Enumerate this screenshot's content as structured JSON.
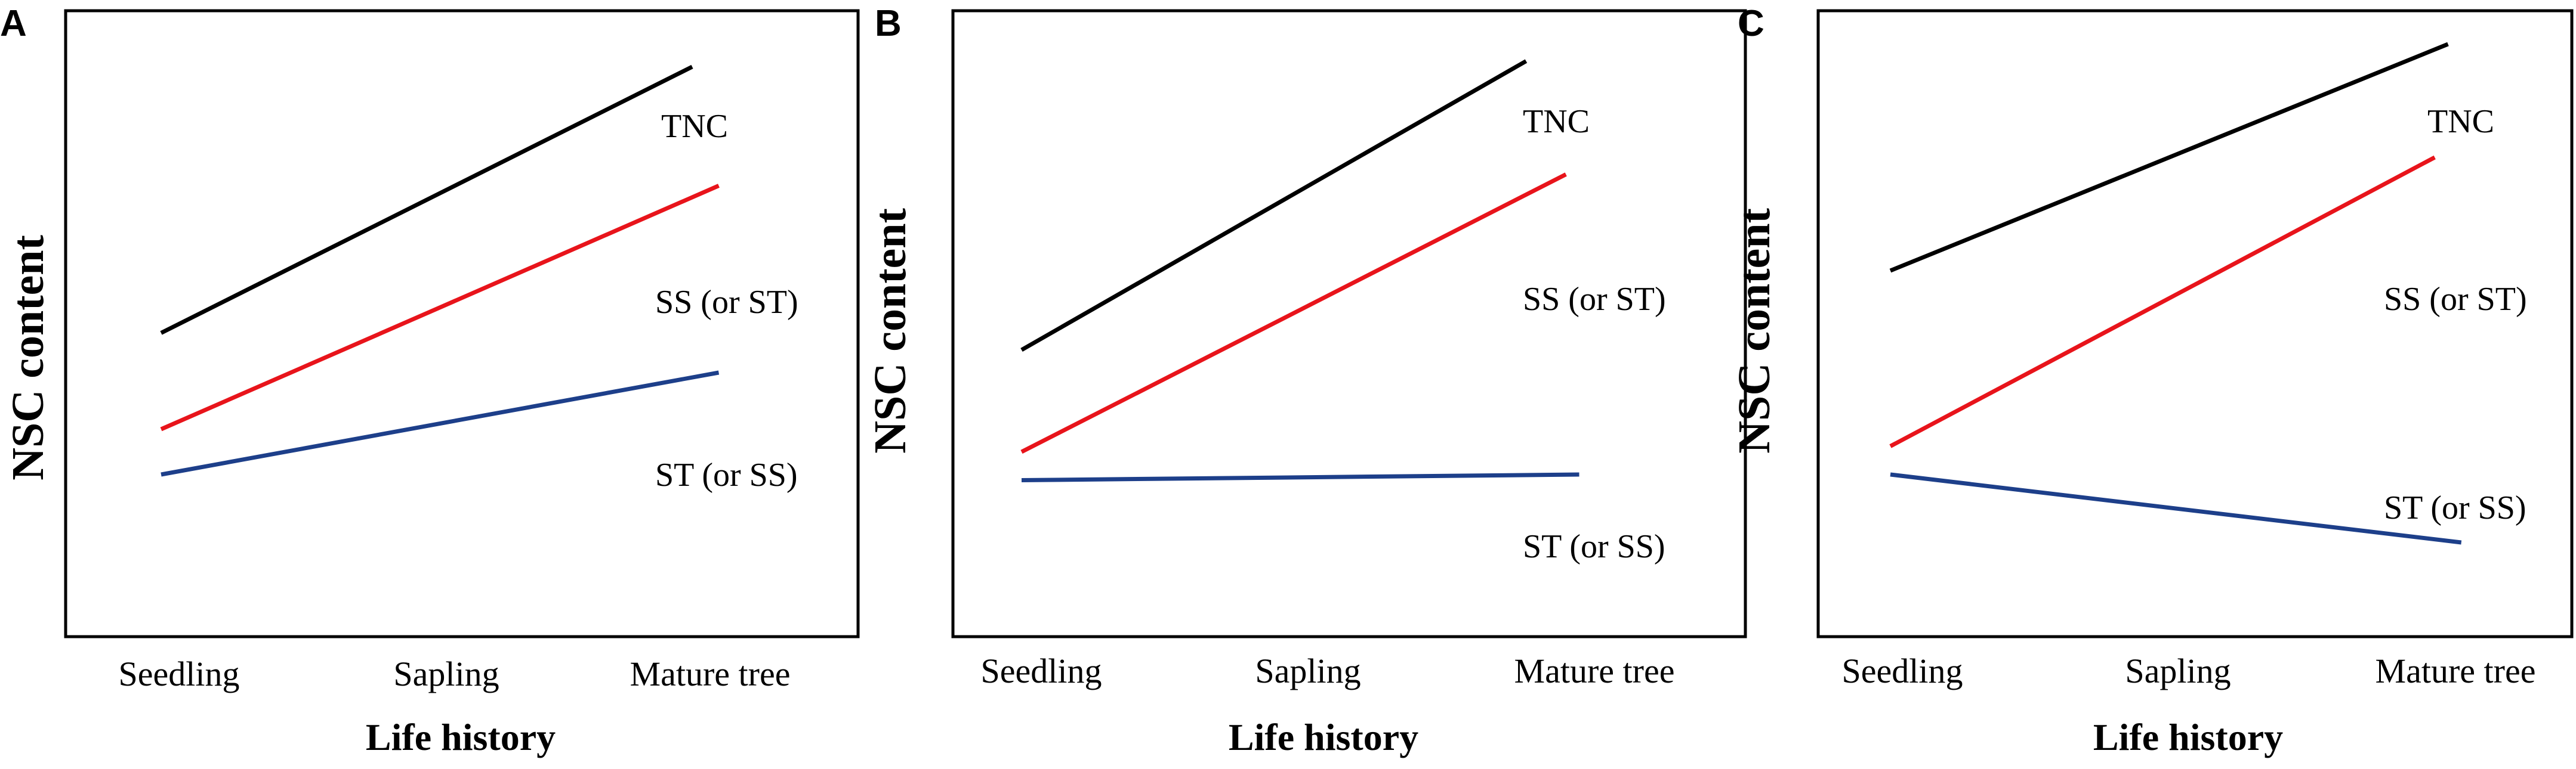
{
  "figure": {
    "colors": {
      "TNC": "#000000",
      "SS": "#e8141b",
      "ST": "#1d3f8a",
      "frame": "#000000",
      "background": "#ffffff"
    }
  },
  "chart_data": [
    {
      "panel": "A",
      "type": "line",
      "title": "",
      "xlabel": "Life history",
      "ylabel": "NSC content",
      "categories": [
        "Seedling",
        "Sapling",
        "Mature tree"
      ],
      "ylim": [
        0,
        100
      ],
      "grid": false,
      "series": [
        {
          "key": "TNC",
          "name": "TNC",
          "x": [
            0.0,
            2.0
          ],
          "values": [
            47,
            94
          ]
        },
        {
          "key": "SS",
          "name": "SS (or ST)",
          "x": [
            0.0,
            2.1
          ],
          "values": [
            30,
            73
          ]
        },
        {
          "key": "ST",
          "name": "ST (or SS)",
          "x": [
            0.0,
            2.1
          ],
          "values": [
            22,
            40
          ]
        }
      ]
    },
    {
      "panel": "B",
      "type": "line",
      "title": "",
      "xlabel": "Life history",
      "ylabel": "NSC content",
      "categories": [
        "Seedling",
        "Sapling",
        "Mature tree"
      ],
      "ylim": [
        0,
        100
      ],
      "grid": false,
      "series": [
        {
          "key": "TNC",
          "name": "TNC",
          "x": [
            0.0,
            1.9
          ],
          "values": [
            44,
            95
          ]
        },
        {
          "key": "SS",
          "name": "SS (or ST)",
          "x": [
            0.0,
            2.05
          ],
          "values": [
            26,
            75
          ]
        },
        {
          "key": "ST",
          "name": "ST (or SS)",
          "x": [
            0.0,
            2.1
          ],
          "values": [
            21,
            22
          ]
        }
      ]
    },
    {
      "panel": "C",
      "type": "line",
      "title": "",
      "xlabel": "Life history",
      "ylabel": "NSC content",
      "categories": [
        "Seedling",
        "Sapling",
        "Mature tree"
      ],
      "ylim": [
        0,
        100
      ],
      "grid": false,
      "series": [
        {
          "key": "TNC",
          "name": "TNC",
          "x": [
            0.0,
            2.1
          ],
          "values": [
            58,
            98
          ]
        },
        {
          "key": "SS",
          "name": "SS (or ST)",
          "x": [
            0.0,
            2.05
          ],
          "values": [
            27,
            78
          ]
        },
        {
          "key": "ST",
          "name": "ST (or SS)",
          "x": [
            0.0,
            2.15
          ],
          "values": [
            22,
            10
          ]
        }
      ]
    }
  ]
}
